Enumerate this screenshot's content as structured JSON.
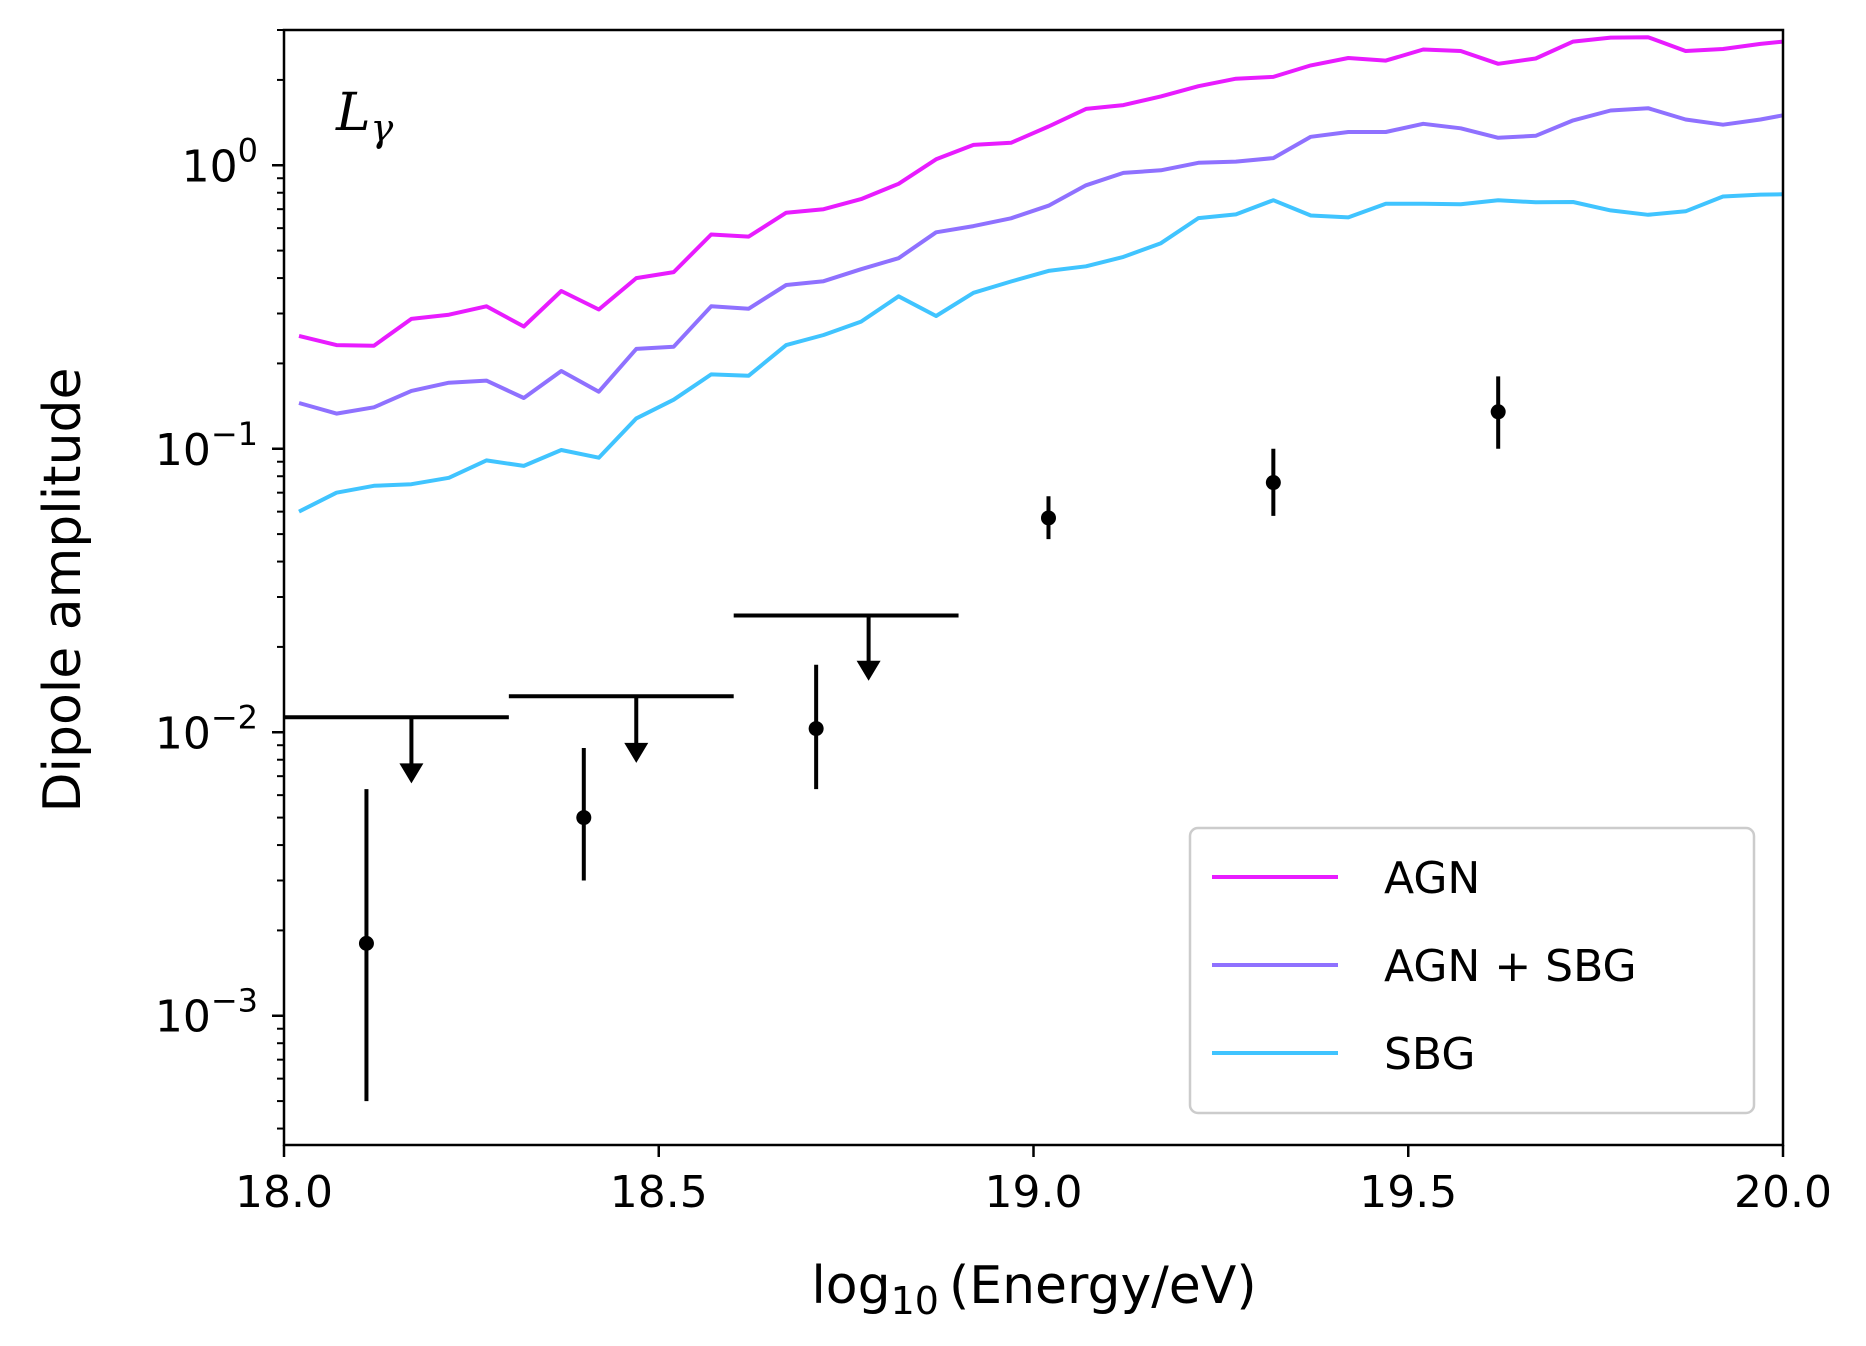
{
  "chart_data": {
    "type": "line",
    "xlabel": {
      "base": "log",
      "sub": "10",
      "rest": "(Energy/eV)"
    },
    "ylabel": "Dipole amplitude",
    "xlim": [
      18.0,
      20.0
    ],
    "ylim": [
      0.00035,
      3.0
    ],
    "yscale": "log",
    "x_ticks": [
      18.0,
      18.5,
      19.0,
      19.5,
      20.0
    ],
    "x_tick_labels": [
      "18.0",
      "18.5",
      "19.0",
      "19.5",
      "20.0"
    ],
    "y_ticks": [
      {
        "value": 1.0,
        "base": "10",
        "exp": "0"
      },
      {
        "value": 0.1,
        "base": "10",
        "exp": "−1"
      },
      {
        "value": 0.01,
        "base": "10",
        "exp": "−2"
      },
      {
        "value": 0.001,
        "base": "10",
        "exp": "−3"
      }
    ],
    "annotation": {
      "main": "L",
      "sub": "γ"
    },
    "legend_position": "lower-right",
    "grid": false,
    "x": [
      18.02,
      18.07,
      18.12,
      18.17,
      18.22,
      18.27,
      18.32,
      18.37,
      18.42,
      18.47,
      18.52,
      18.57,
      18.62,
      18.67,
      18.72,
      18.77,
      18.82,
      18.87,
      18.92,
      18.97,
      19.02,
      19.07,
      19.12,
      19.17,
      19.22,
      19.27,
      19.32,
      19.37,
      19.42,
      19.47,
      19.52,
      19.57,
      19.62,
      19.67,
      19.72,
      19.77,
      19.82,
      19.87,
      19.92,
      19.97,
      20.0
    ],
    "series": [
      {
        "name": "AGN",
        "color": "#e81cff",
        "values": [
          0.25,
          0.232,
          0.231,
          0.287,
          0.297,
          0.318,
          0.27,
          0.36,
          0.31,
          0.4,
          0.42,
          0.57,
          0.56,
          0.68,
          0.7,
          0.76,
          0.86,
          1.05,
          1.18,
          1.2,
          1.37,
          1.58,
          1.63,
          1.75,
          1.9,
          2.02,
          2.05,
          2.25,
          2.39,
          2.34,
          2.56,
          2.53,
          2.28,
          2.38,
          2.73,
          2.82,
          2.83,
          2.53,
          2.57,
          2.68,
          2.73
        ]
      },
      {
        "name": "AGN + SBG",
        "color": "#8f71ff",
        "values": [
          0.145,
          0.133,
          0.14,
          0.16,
          0.171,
          0.174,
          0.151,
          0.188,
          0.159,
          0.225,
          0.229,
          0.318,
          0.312,
          0.378,
          0.39,
          0.43,
          0.47,
          0.58,
          0.61,
          0.65,
          0.72,
          0.85,
          0.94,
          0.96,
          1.02,
          1.03,
          1.06,
          1.26,
          1.31,
          1.31,
          1.4,
          1.35,
          1.25,
          1.27,
          1.44,
          1.56,
          1.59,
          1.45,
          1.39,
          1.45,
          1.5
        ]
      },
      {
        "name": "SBG",
        "color": "#40c4ff",
        "values": [
          0.06,
          0.07,
          0.074,
          0.075,
          0.079,
          0.091,
          0.087,
          0.099,
          0.093,
          0.128,
          0.149,
          0.183,
          0.181,
          0.232,
          0.252,
          0.281,
          0.345,
          0.294,
          0.355,
          0.389,
          0.424,
          0.44,
          0.475,
          0.531,
          0.651,
          0.671,
          0.753,
          0.665,
          0.655,
          0.732,
          0.731,
          0.728,
          0.753,
          0.74,
          0.742,
          0.693,
          0.669,
          0.688,
          0.776,
          0.788,
          0.79
        ]
      }
    ],
    "measurements": {
      "color": "#000000",
      "points": [
        {
          "x": 18.11,
          "y": 0.0018,
          "ylow": 0.0005,
          "yhigh": 0.0063
        },
        {
          "x": 18.4,
          "y": 0.005,
          "ylow": 0.003,
          "yhigh": 0.0088
        },
        {
          "x": 18.71,
          "y": 0.0103,
          "ylow": 0.0063,
          "yhigh": 0.0173
        },
        {
          "x": 19.02,
          "y": 0.057,
          "ylow": 0.048,
          "yhigh": 0.068
        },
        {
          "x": 19.32,
          "y": 0.076,
          "ylow": 0.058,
          "yhigh": 0.1
        },
        {
          "x": 19.62,
          "y": 0.135,
          "ylow": 0.1,
          "yhigh": 0.18
        }
      ]
    },
    "upper_limits": {
      "color": "#000000",
      "items": [
        {
          "x_start": 18.0,
          "x_end": 18.3,
          "arrow_x": 18.17,
          "value": 0.0113,
          "arrow_to": 0.0066
        },
        {
          "x_start": 18.3,
          "x_end": 18.6,
          "arrow_x": 18.47,
          "value": 0.0134,
          "arrow_to": 0.0078
        },
        {
          "x_start": 18.6,
          "x_end": 18.9,
          "arrow_x": 18.78,
          "value": 0.0258,
          "arrow_to": 0.0152
        }
      ]
    }
  }
}
